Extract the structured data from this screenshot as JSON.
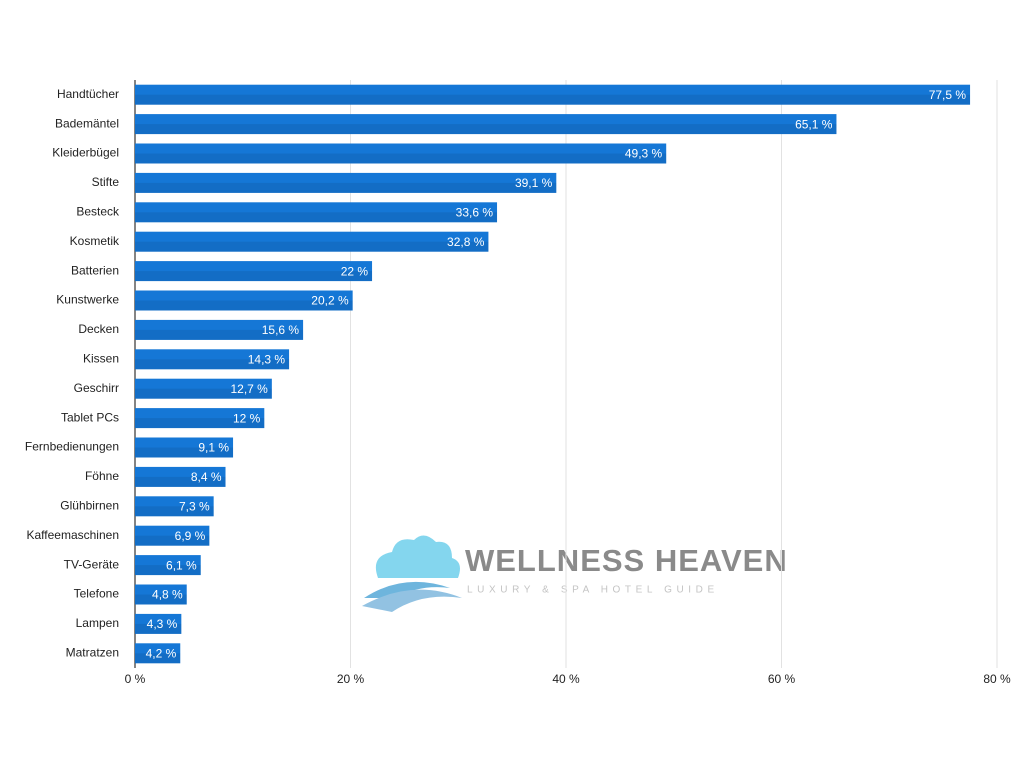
{
  "chart_data": {
    "type": "bar",
    "orientation": "horizontal",
    "categories": [
      "Handtücher",
      "Bademäntel",
      "Kleiderbügel",
      "Stifte",
      "Besteck",
      "Kosmetik",
      "Batterien",
      "Kunstwerke",
      "Decken",
      "Kissen",
      "Geschirr",
      "Tablet PCs",
      "Fernbedienungen",
      "Föhne",
      "Glühbirnen",
      "Kaffeemaschinen",
      "TV-Geräte",
      "Telefone",
      "Lampen",
      "Matratzen"
    ],
    "values": [
      77.5,
      65.1,
      49.3,
      39.1,
      33.6,
      32.8,
      22,
      20.2,
      15.6,
      14.3,
      12.7,
      12,
      9.1,
      8.4,
      7.3,
      6.9,
      6.1,
      4.8,
      4.3,
      4.2
    ],
    "value_labels": [
      "77,5 %",
      "65,1 %",
      "49,3 %",
      "39,1 %",
      "33,6 %",
      "32,8 %",
      "22 %",
      "20,2 %",
      "15,6 %",
      "14,3 %",
      "12,7 %",
      "12 %",
      "9,1 %",
      "8,4 %",
      "7,3 %",
      "6,9 %",
      "6,1 %",
      "4,8 %",
      "4,3 %",
      "4,2 %"
    ],
    "color": "#1577d6",
    "xlim": [
      0,
      80
    ],
    "xticks": [
      {
        "value": 0,
        "label": "0 %"
      },
      {
        "value": 20,
        "label": "20 %"
      },
      {
        "value": 40,
        "label": "40 %"
      },
      {
        "value": 60,
        "label": "60 %"
      },
      {
        "value": 80,
        "label": "80 %"
      }
    ],
    "grid": true,
    "annotations": [
      "WELLNESS HEAVEN",
      "LUXURY & SPA HOTEL GUIDE"
    ]
  }
}
